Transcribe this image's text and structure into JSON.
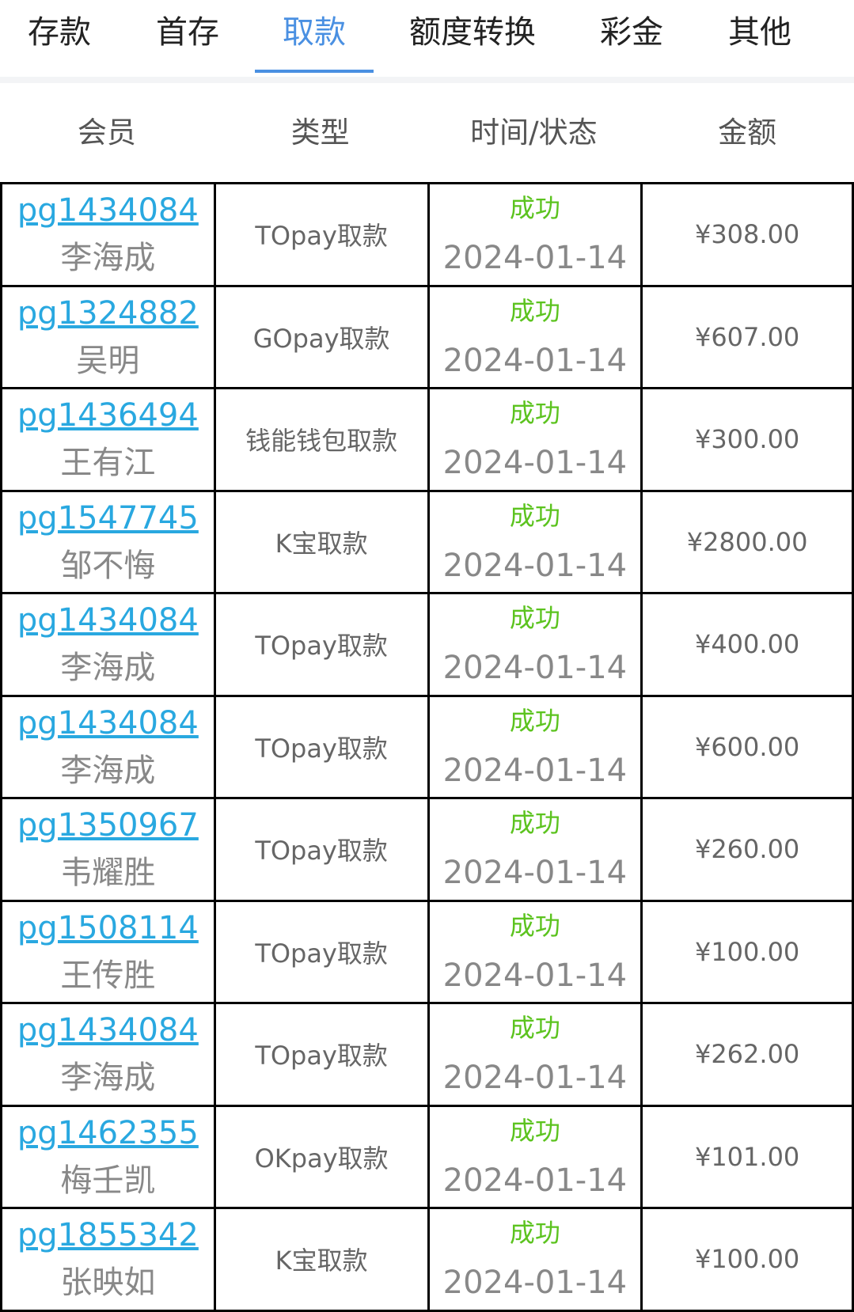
{
  "tabs": [
    {
      "label": "存款"
    },
    {
      "label": "首存"
    },
    {
      "label": "取款",
      "active": true
    },
    {
      "label": "额度转换"
    },
    {
      "label": "彩金"
    },
    {
      "label": "其他"
    }
  ],
  "colors": {
    "accent": "#4a90e2",
    "link": "#29a8e0",
    "success": "#5cc31f"
  },
  "table": {
    "headers": [
      "会员",
      "类型",
      "时间/状态",
      "金额"
    ],
    "rows": [
      {
        "user": "pg1434084",
        "name": "李海成",
        "type": "TOpay取款",
        "status": "成功",
        "date": "2024-01-14",
        "amount": "¥308.00"
      },
      {
        "user": "pg1324882",
        "name": "吴明",
        "type": "GOpay取款",
        "status": "成功",
        "date": "2024-01-14",
        "amount": "¥607.00"
      },
      {
        "user": "pg1436494",
        "name": "王有江",
        "type": "钱能钱包取款",
        "status": "成功",
        "date": "2024-01-14",
        "amount": "¥300.00"
      },
      {
        "user": "pg1547745",
        "name": "邹不悔",
        "type": "K宝取款",
        "status": "成功",
        "date": "2024-01-14",
        "amount": "¥2800.00"
      },
      {
        "user": "pg1434084",
        "name": "李海成",
        "type": "TOpay取款",
        "status": "成功",
        "date": "2024-01-14",
        "amount": "¥400.00"
      },
      {
        "user": "pg1434084",
        "name": "李海成",
        "type": "TOpay取款",
        "status": "成功",
        "date": "2024-01-14",
        "amount": "¥600.00"
      },
      {
        "user": "pg1350967",
        "name": "韦耀胜",
        "type": "TOpay取款",
        "status": "成功",
        "date": "2024-01-14",
        "amount": "¥260.00"
      },
      {
        "user": "pg1508114",
        "name": "王传胜",
        "type": "TOpay取款",
        "status": "成功",
        "date": "2024-01-14",
        "amount": "¥100.00"
      },
      {
        "user": "pg1434084",
        "name": "李海成",
        "type": "TOpay取款",
        "status": "成功",
        "date": "2024-01-14",
        "amount": "¥262.00"
      },
      {
        "user": "pg1462355",
        "name": "梅壬凯",
        "type": "OKpay取款",
        "status": "成功",
        "date": "2024-01-14",
        "amount": "¥101.00"
      },
      {
        "user": "pg1855342",
        "name": "张映如",
        "type": "K宝取款",
        "status": "成功",
        "date": "2024-01-14",
        "amount": "¥100.00"
      }
    ]
  }
}
